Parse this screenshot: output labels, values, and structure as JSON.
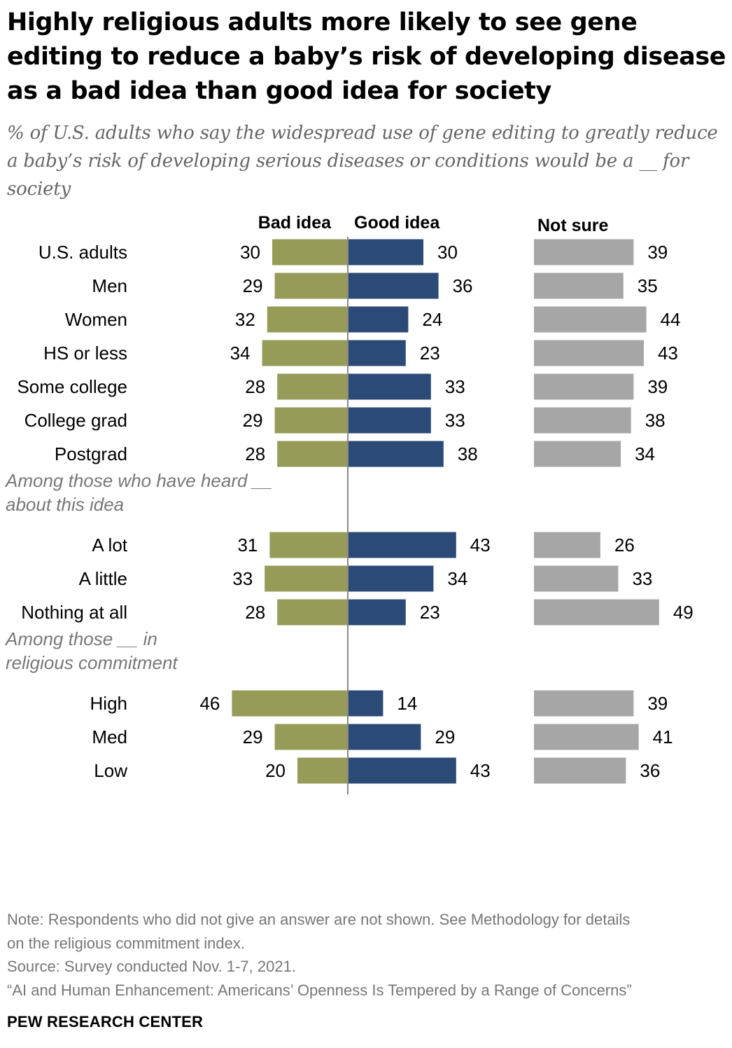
{
  "header": {
    "title": "Highly religious adults more likely to see gene editing to reduce a baby’s risk of developing disease as a bad idea than good idea for society",
    "subtitle": "% of U.S. adults who say the widespread use of gene editing to greatly reduce a baby’s risk of developing serious diseases or conditions would be a __ for society"
  },
  "chart_data": {
    "type": "bar",
    "title": "Highly religious adults more likely to see gene editing to reduce a baby’s risk of developing disease as a bad idea than good idea for society",
    "column_headers": {
      "bad": "Bad idea",
      "good": "Good idea",
      "notsure": "Not sure"
    },
    "colors": {
      "bad": "#969b57",
      "good": "#2b4a76",
      "notsure": "#a6a6a6",
      "axis": "#8a8a8a",
      "label": "#000000",
      "section_label": "#777777"
    },
    "series": [
      {
        "name": "Bad idea",
        "key": "bad"
      },
      {
        "name": "Good idea",
        "key": "good"
      },
      {
        "name": "Not sure",
        "key": "notsure"
      }
    ],
    "groups": [
      {
        "section_label": "",
        "rows": [
          {
            "category": "U.S. adults",
            "bad": 30,
            "good": 30,
            "notsure": 39
          }
        ]
      },
      {
        "section_label": "",
        "rows": [
          {
            "category": "Men",
            "bad": 29,
            "good": 36,
            "notsure": 35
          },
          {
            "category": "Women",
            "bad": 32,
            "good": 24,
            "notsure": 44
          }
        ]
      },
      {
        "section_label": "",
        "rows": [
          {
            "category": "HS or less",
            "bad": 34,
            "good": 23,
            "notsure": 43
          },
          {
            "category": "Some college",
            "bad": 28,
            "good": 33,
            "notsure": 39
          },
          {
            "category": "College grad",
            "bad": 29,
            "good": 33,
            "notsure": 38
          },
          {
            "category": "Postgrad",
            "bad": 28,
            "good": 38,
            "notsure": 34
          }
        ]
      },
      {
        "section_label": [
          "Among those who have heard __",
          "about this idea"
        ],
        "rows": [
          {
            "category": "A lot",
            "bad": 31,
            "good": 43,
            "notsure": 26
          },
          {
            "category": "A little",
            "bad": 33,
            "good": 34,
            "notsure": 33
          },
          {
            "category": "Nothing at all",
            "bad": 28,
            "good": 23,
            "notsure": 49
          }
        ]
      },
      {
        "section_label": [
          "Among those __ in",
          "religious commitment"
        ],
        "rows": [
          {
            "category": "High",
            "bad": 46,
            "good": 14,
            "notsure": 39
          },
          {
            "category": "Med",
            "bad": 29,
            "good": 29,
            "notsure": 41
          },
          {
            "category": "Low",
            "bad": 20,
            "good": 43,
            "notsure": 36
          }
        ]
      }
    ]
  },
  "footer": {
    "note_line1": "Note: Respondents who did not give an answer are not shown. See Methodology for details",
    "note_line2": "on the religious commitment index.",
    "source": "Source: Survey conducted Nov. 1-7, 2021.",
    "report": "“AI and Human Enhancement: Americans’ Openness Is Tempered by a Range of Concerns”",
    "brand": "PEW RESEARCH CENTER"
  }
}
